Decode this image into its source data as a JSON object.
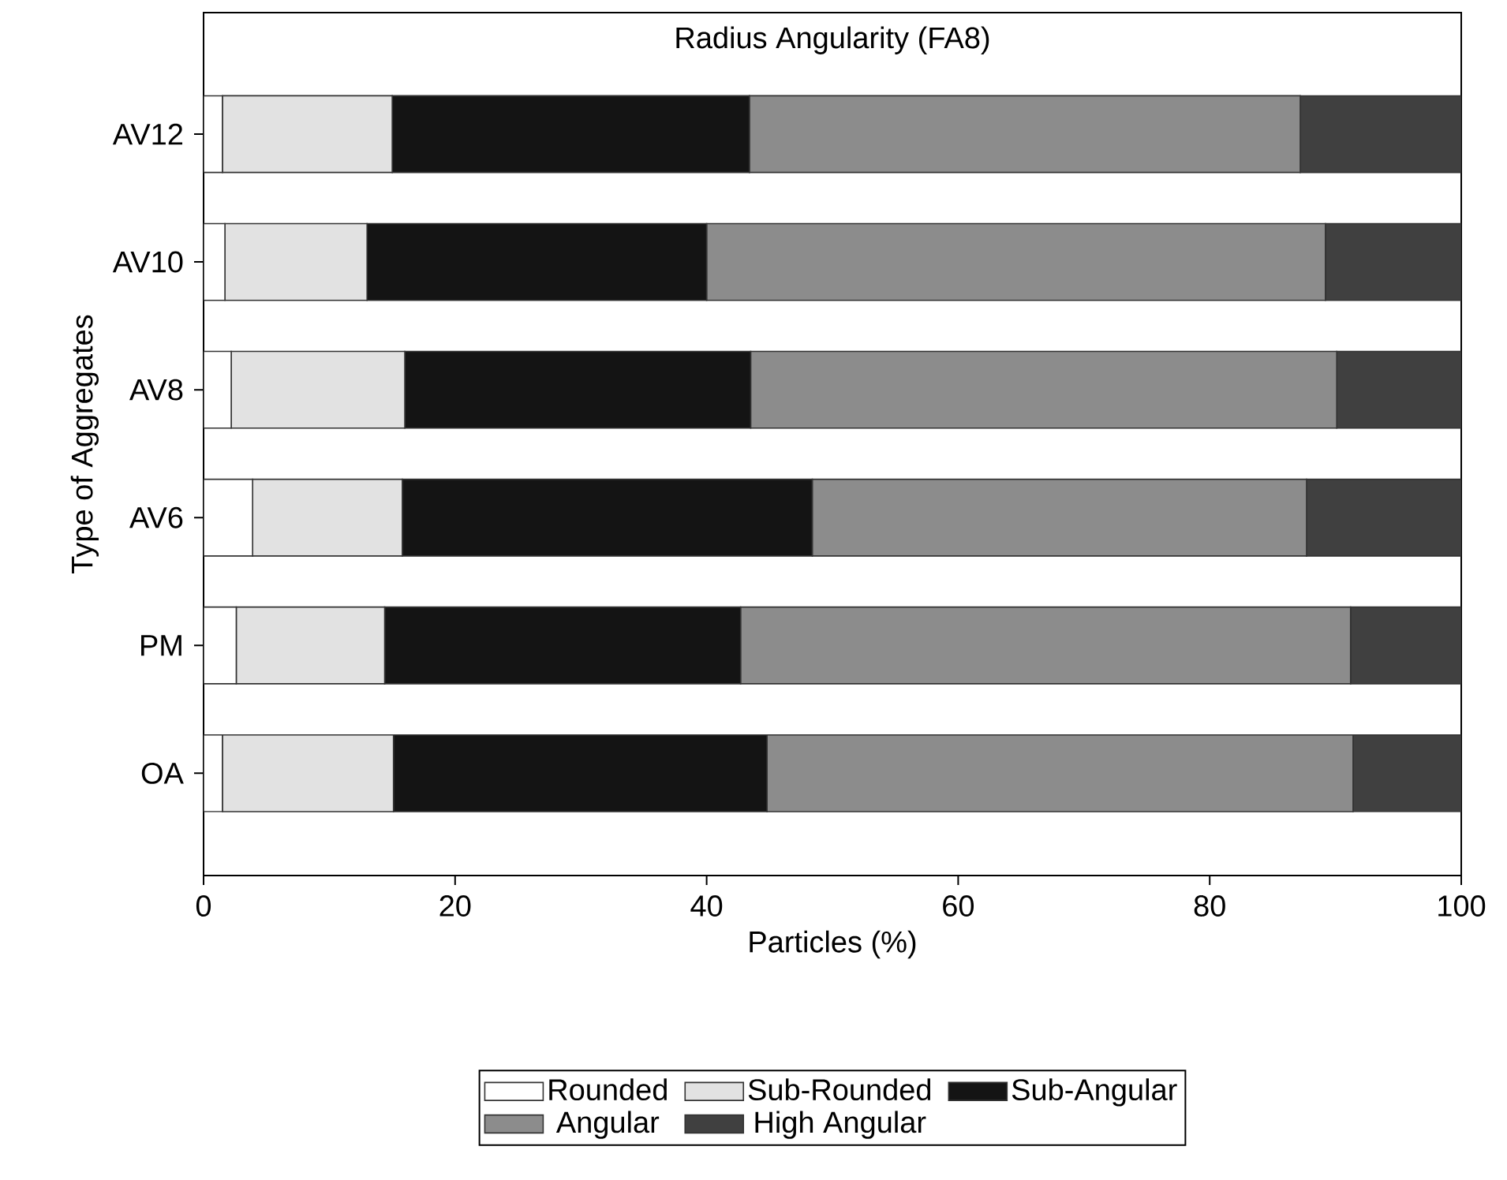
{
  "chart_data": {
    "type": "bar",
    "orientation": "horizontal",
    "stacked": true,
    "title": "Radius Angularity (FA8)",
    "xlabel": "Particles (%)",
    "ylabel": "Type of Aggregates",
    "categories": [
      "AV12",
      "AV10",
      "AV8",
      "AV6",
      "PM",
      "OA"
    ],
    "series": [
      {
        "name": "Rounded",
        "color": "#ffffff",
        "values": [
          1.5,
          1.7,
          2.2,
          3.9,
          2.6,
          1.5
        ]
      },
      {
        "name": "Sub-Rounded",
        "color": "#e2e2e2",
        "values": [
          13.5,
          11.3,
          13.8,
          11.9,
          11.8,
          13.6
        ]
      },
      {
        "name": "Sub-Angular",
        "color": "#141414",
        "values": [
          28.4,
          27.0,
          27.5,
          32.6,
          28.3,
          29.7
        ]
      },
      {
        "name": "Angular",
        "color": "#8c8c8c",
        "values": [
          43.8,
          49.2,
          46.6,
          39.3,
          48.5,
          46.6
        ]
      },
      {
        "name": "High Angular",
        "color": "#404040",
        "values": [
          12.8,
          10.8,
          9.9,
          12.3,
          8.8,
          8.6
        ]
      }
    ],
    "xlim": [
      0,
      100
    ],
    "xticks": [
      0,
      20,
      40,
      60,
      80,
      100
    ],
    "legend": "bottom",
    "grid": false
  }
}
